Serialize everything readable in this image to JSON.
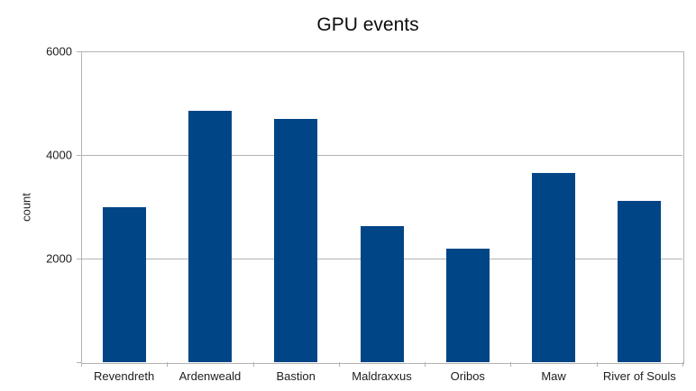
{
  "colors": {
    "bar": "#004586",
    "grid": "#b3b3b3",
    "text": "#1d1d1d",
    "background": "#ffffff"
  },
  "chart_data": {
    "type": "bar",
    "title": "GPU events",
    "categories": [
      "Revendreth",
      "Ardenweald",
      "Bastion",
      "Maldraxxus",
      "Oribos",
      "Maw",
      "River of Souls"
    ],
    "values": [
      3000,
      4860,
      4690,
      2620,
      2200,
      3660,
      3110
    ],
    "xlabel": "",
    "ylabel": "count",
    "ylim": [
      0,
      6000
    ],
    "yticks": [
      2000,
      4000,
      6000
    ],
    "grid": true,
    "legend": false,
    "bar_color": "#004586"
  }
}
